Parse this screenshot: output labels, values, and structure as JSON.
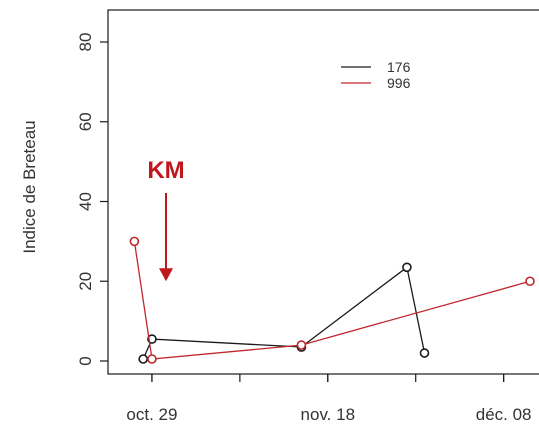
{
  "chart_data": {
    "type": "line",
    "ylabel": "Indice de Breteau",
    "ylim": [
      0,
      80
    ],
    "yticks": [
      0,
      20,
      40,
      60,
      80
    ],
    "xlim": [
      "2013-10-24",
      "2013-12-11"
    ],
    "xticks": [
      {
        "date": "2013-10-29",
        "label": "oct. 29"
      },
      {
        "date": "2013-11-18",
        "label": "nov. 18"
      },
      {
        "date": "2013-12-08",
        "label": "déc. 08"
      }
    ],
    "xminor_ticks": [
      "2013-10-29",
      "2013-11-08",
      "2013-11-18",
      "2013-11-28",
      "2013-12-08"
    ],
    "series": [
      {
        "name": "176",
        "color": "#1a1a1a",
        "points": [
          {
            "x": "2013-10-28",
            "y": 0.5
          },
          {
            "x": "2013-10-29",
            "y": 5.5
          },
          {
            "x": "2013-11-15",
            "y": 3.5
          },
          {
            "x": "2013-11-27",
            "y": 23.5
          },
          {
            "x": "2013-11-29",
            "y": 2.0
          }
        ]
      },
      {
        "name": "996",
        "color": "#c0272d",
        "points": [
          {
            "x": "2013-10-27",
            "y": 30.0
          },
          {
            "x": "2013-10-29",
            "y": 0.5
          },
          {
            "x": "2013-11-15",
            "y": 4.0
          },
          {
            "x": "2013-12-11",
            "y": 20.0
          }
        ]
      }
    ],
    "legend_position": "top-center",
    "annotation": {
      "text": "KM",
      "color": "#c0171d",
      "points_to": {
        "x": "2013-10-29",
        "y": 22
      }
    }
  }
}
